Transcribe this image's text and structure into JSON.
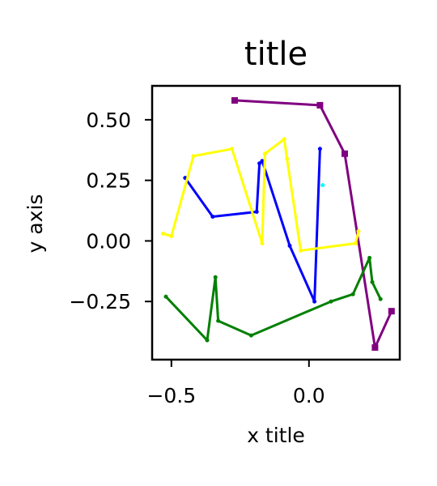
{
  "chart_data": {
    "type": "line",
    "title": "title",
    "xlabel": "x title",
    "ylabel": "y axis",
    "xlim": [
      -0.57,
      0.33
    ],
    "ylim": [
      -0.49,
      0.64
    ],
    "xticks": [
      -0.5,
      0.0
    ],
    "xtick_labels": [
      "−0.5",
      "0.0"
    ],
    "yticks": [
      0.5,
      0.25,
      0.0,
      -0.25
    ],
    "ytick_labels": [
      "0.50",
      "0.25",
      "0.00",
      "−0.25"
    ],
    "grid": false,
    "legend": null,
    "series": [
      {
        "color": "#800080",
        "marker": "square",
        "points": [
          [
            -0.27,
            0.58
          ],
          [
            0.04,
            0.56
          ],
          [
            0.13,
            0.36
          ],
          [
            0.24,
            -0.44
          ],
          [
            0.3,
            -0.29
          ]
        ]
      },
      {
        "color": "#0000ff",
        "marker": "dot",
        "points": [
          [
            -0.45,
            0.26
          ],
          [
            -0.35,
            0.1
          ],
          [
            -0.19,
            0.12
          ],
          [
            -0.18,
            0.32
          ],
          [
            -0.17,
            0.33
          ],
          [
            -0.07,
            -0.02
          ],
          [
            0.02,
            -0.25
          ],
          [
            0.04,
            0.38
          ]
        ]
      },
      {
        "color": "#ffff00",
        "marker": "dot",
        "points": [
          [
            -0.53,
            0.03
          ],
          [
            -0.5,
            0.02
          ],
          [
            -0.42,
            0.35
          ],
          [
            -0.28,
            0.38
          ],
          [
            -0.17,
            -0.01
          ],
          [
            -0.16,
            0.36
          ],
          [
            -0.09,
            0.42
          ],
          [
            -0.08,
            0.34
          ],
          [
            -0.03,
            -0.04
          ],
          [
            0.17,
            -0.01
          ],
          [
            0.18,
            0.04
          ]
        ]
      },
      {
        "color": "#008000",
        "marker": "dot",
        "points": [
          [
            -0.52,
            -0.23
          ],
          [
            -0.37,
            -0.41
          ],
          [
            -0.34,
            -0.15
          ],
          [
            -0.33,
            -0.33
          ],
          [
            -0.21,
            -0.39
          ],
          [
            0.08,
            -0.25
          ],
          [
            0.16,
            -0.22
          ],
          [
            0.22,
            -0.07
          ],
          [
            0.23,
            -0.17
          ],
          [
            0.26,
            -0.24
          ]
        ]
      },
      {
        "color": "#00ffff",
        "marker": "dot",
        "points": [
          [
            0.05,
            0.23
          ]
        ]
      }
    ]
  }
}
